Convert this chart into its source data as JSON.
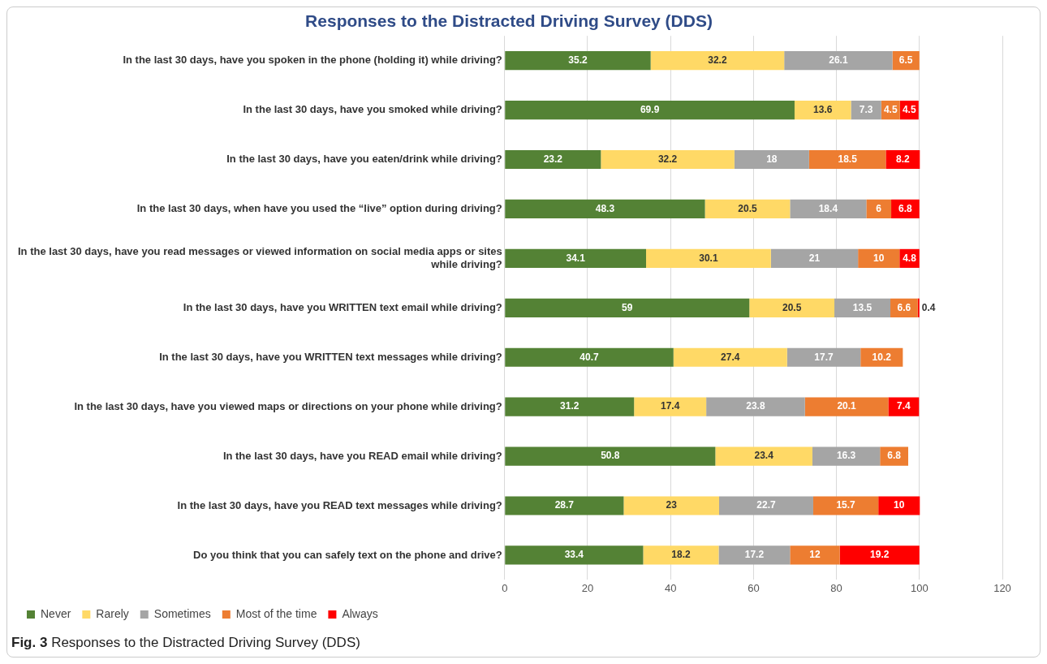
{
  "chart_data": {
    "type": "bar",
    "orientation": "horizontal",
    "stacked": true,
    "title": "Responses to the Distracted Driving Survey (DDS)",
    "categories": [
      "In the last 30 days, have you spoken in the phone (holding it) while driving?",
      "In the last 30 days, have you smoked while driving?",
      "In the last 30 days, have you eaten/drink while driving?",
      "In the last 30 days, when have you used the “live” option during driving?",
      "In the last 30 days, have you read messages or viewed information on social media apps or sites while driving?",
      "In the last 30 days, have you WRITTEN text email while driving?",
      "In the last 30 days, have you WRITTEN text messages while driving?",
      "In the last 30 days, have you viewed maps or directions on your phone while driving?",
      "In the last 30 days, have you READ email while driving?",
      "In the last 30 days, have you READ text messages while driving?",
      "Do you think that you can safely text on the phone and drive?"
    ],
    "series": [
      {
        "name": "Never",
        "color": "#548235",
        "values": [
          35.2,
          69.9,
          23.2,
          48.3,
          34.1,
          59,
          40.7,
          31.2,
          50.8,
          28.7,
          33.4
        ]
      },
      {
        "name": "Rarely",
        "color": "#ffd966",
        "values": [
          32.2,
          13.6,
          32.2,
          20.5,
          30.1,
          20.5,
          27.4,
          17.4,
          23.4,
          23,
          18.2
        ]
      },
      {
        "name": "Sometimes",
        "color": "#a5a5a5",
        "values": [
          26.1,
          7.3,
          18,
          18.4,
          21,
          13.5,
          17.7,
          23.8,
          16.3,
          22.7,
          17.2
        ]
      },
      {
        "name": "Most of the time",
        "color": "#ed7d31",
        "values": [
          6.5,
          4.5,
          18.5,
          6,
          10,
          6.6,
          10.2,
          20.1,
          6.8,
          15.7,
          12
        ]
      },
      {
        "name": "Always",
        "color": "#ff0000",
        "values": [
          null,
          4.5,
          8.2,
          6.8,
          4.8,
          0.4,
          null,
          7.4,
          null,
          10,
          19.2
        ]
      }
    ],
    "xlim": [
      0,
      120
    ],
    "xticks": [
      0,
      20,
      40,
      60,
      80,
      100,
      120
    ],
    "grid": "x",
    "legend": "bottom left",
    "data_labels": true,
    "annotations": [
      "Fig. 3 Responses to the Distracted Driving Survey (DDS)"
    ]
  }
}
